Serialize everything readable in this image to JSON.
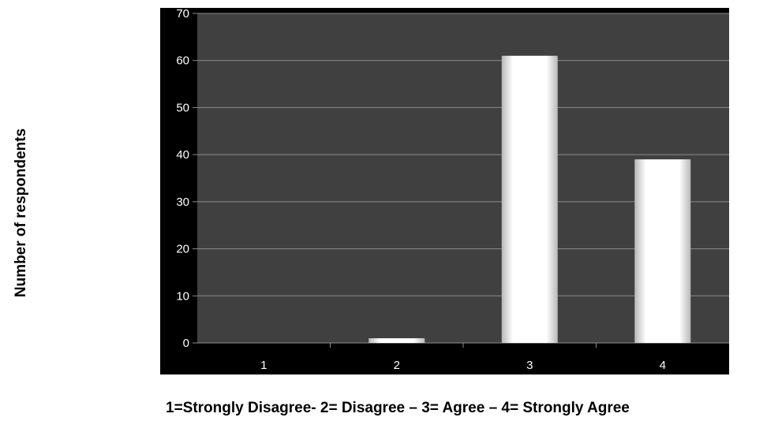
{
  "chart_data": {
    "type": "bar",
    "categories": [
      "1",
      "2",
      "3",
      "4"
    ],
    "values": [
      0,
      1,
      61,
      39
    ],
    "title": "",
    "xlabel": "1=Strongly Disagree- 2= Disagree – 3= Agree – 4= Strongly Agree",
    "ylabel": "Number of respondents",
    "ylim": [
      0,
      70
    ],
    "yticks": [
      "0",
      "10",
      "20",
      "30",
      "40",
      "50",
      "60",
      "70"
    ],
    "grid": true,
    "legend": "none",
    "colors": {
      "frame": "#000000",
      "plot_background": "#404040",
      "gridline": "#8c8c8c",
      "tick_text": "#ffffff",
      "bar_light": "#ffffff",
      "bar_shade": "#b8b8b8"
    }
  }
}
